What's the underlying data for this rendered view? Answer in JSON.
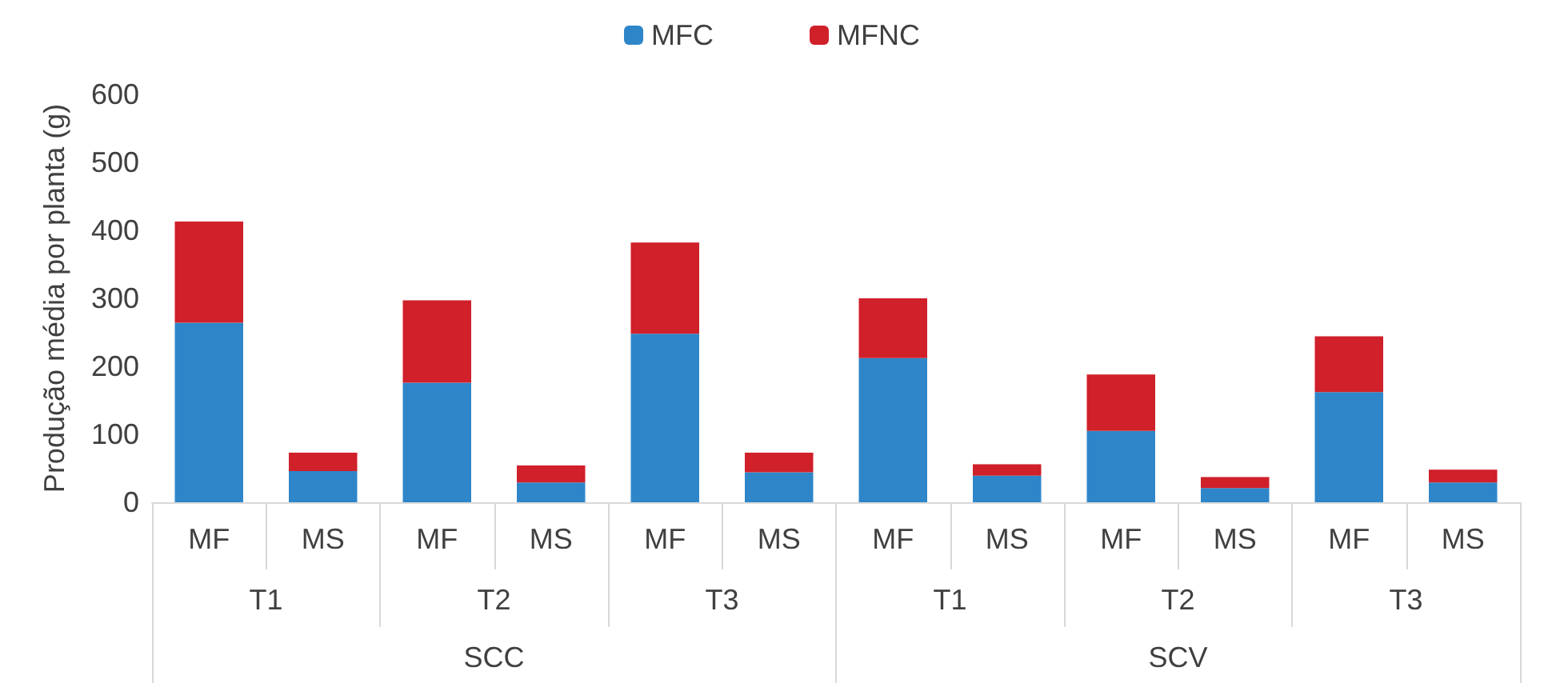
{
  "chart_data": {
    "type": "bar",
    "stacked": true,
    "ylabel": "Produção média por planta (g)",
    "categories": [
      "MF",
      "MS",
      "MF",
      "MS",
      "MF",
      "MS",
      "MF",
      "MS",
      "MF",
      "MS",
      "MF",
      "MS"
    ],
    "series": [
      {
        "name": "MFC",
        "color": "#2e86c8",
        "values": [
          264,
          46,
          176,
          29,
          248,
          44,
          212,
          39,
          105,
          21,
          162,
          29
        ]
      },
      {
        "name": "MFNC",
        "color": "#d0202a",
        "values": [
          149,
          27,
          121,
          25,
          134,
          29,
          88,
          17,
          83,
          16,
          82,
          19
        ]
      }
    ],
    "ylim": [
      0,
      600
    ],
    "yticks": [
      0,
      100,
      200,
      300,
      400,
      500,
      600
    ],
    "grid": false,
    "legend": "top",
    "annotations": [
      "T1",
      "T2",
      "T3",
      "T1",
      "T2",
      "T3",
      "SCC",
      "SCV"
    ]
  }
}
